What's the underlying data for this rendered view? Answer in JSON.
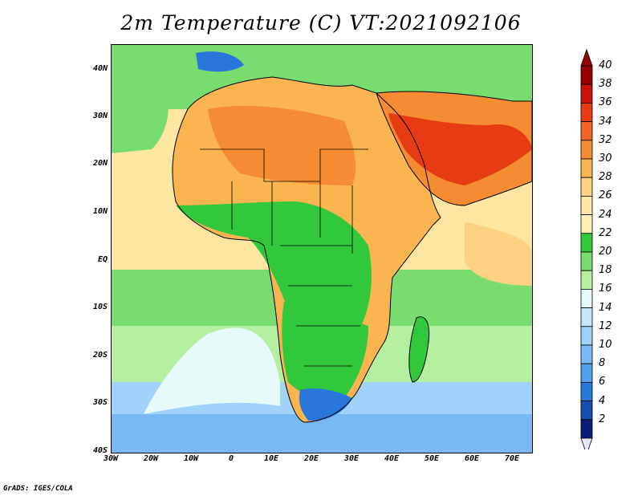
{
  "title": "2m Temperature (C) VT:2021092106",
  "credit": "GrADS: IGES/COLA",
  "lat_labels": [
    "40N",
    "30N",
    "20N",
    "10N",
    "EQ",
    "10S",
    "20S",
    "30S",
    "40S"
  ],
  "lon_labels": [
    "30W",
    "20W",
    "10W",
    "0",
    "10E",
    "20E",
    "30E",
    "40E",
    "50E",
    "60E",
    "70E"
  ],
  "extent": {
    "lon_min": -30,
    "lon_max": 75,
    "lat_min": -40,
    "lat_max": 45
  },
  "colorbar": {
    "levels": [
      "40",
      "38",
      "36",
      "34",
      "32",
      "30",
      "28",
      "26",
      "24",
      "22",
      "20",
      "18",
      "16",
      "14",
      "12",
      "10",
      "8",
      "6",
      "4",
      "2"
    ],
    "colors": [
      "#960000",
      "#c8140a",
      "#e63c14",
      "#f06428",
      "#f58c32",
      "#fab450",
      "#fcd282",
      "#fde6a0",
      "#fff0b4",
      "#32c83c",
      "#78dc6e",
      "#b4f0a0",
      "#e6fafa",
      "#c8e6fa",
      "#a0d2fa",
      "#78b9f5",
      "#50a0ee",
      "#2878dc",
      "#1450b4",
      "#0a1e78"
    ],
    "top_arrow_color": "#960000",
    "bottom_arrow_color": "#e6e6fa"
  },
  "region_colors": {
    "ocean_warm": "#fde6a0",
    "ocean_hot": "#fcd282",
    "ocean_mild": "#78dc6e",
    "ocean_cool": "#b4f0a0",
    "ocean_cold": "#e6fafa",
    "ocean_colder": "#a0d2fa",
    "ocean_coldest": "#78b9f5",
    "land_hot": "#f58c32",
    "land_very_hot": "#e63c14",
    "land_warm": "#fab450",
    "land_green": "#32c83c",
    "land_cold": "#2878dc",
    "border": "#000000"
  }
}
